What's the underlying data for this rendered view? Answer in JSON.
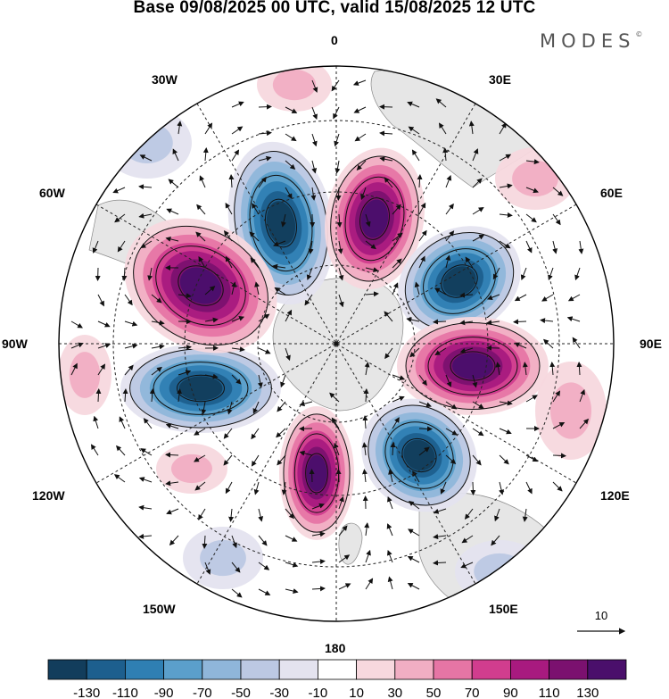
{
  "title": "Base 09/08/2025 00 UTC, valid 15/08/2025 12 UTC",
  "brand": "MODES",
  "brand_mark": "©",
  "longitude_labels": {
    "n": "0",
    "ne30": "30E",
    "ne60": "60E",
    "e": "90E",
    "se120": "120E",
    "se150": "150E",
    "s": "180",
    "sw150": "150W",
    "sw120": "120W",
    "w": "90W",
    "nw60": "60W",
    "nw30": "30W"
  },
  "vector_reference": "10",
  "colorbar": {
    "labels": [
      "-130",
      "-110",
      "-90",
      "-70",
      "-50",
      "-30",
      "-10",
      "10",
      "30",
      "50",
      "70",
      "90",
      "110",
      "130"
    ],
    "colors": [
      "#123d5c",
      "#1d5f8e",
      "#2f7fb3",
      "#5b9fcb",
      "#8fb6da",
      "#bcc8e3",
      "#e4e3ef",
      "#ffffff",
      "#f7d8de",
      "#f1aec3",
      "#e675a5",
      "#d13d8e",
      "#a81a7f",
      "#7b116f",
      "#4a0f6b"
    ]
  },
  "field_centers": {
    "anticyclonic": [
      "Negative lobe NNW",
      "Negative lobe NE",
      "Negative lobe W",
      "Negative lobe SE"
    ],
    "cyclonic": [
      "Positive lobe N",
      "Positive lobe WNW",
      "Positive lobe E",
      "Positive lobe S"
    ]
  },
  "colors": {
    "land": "#e6e6e6",
    "coast": "#8a8a8a",
    "grid": "#222222"
  }
}
